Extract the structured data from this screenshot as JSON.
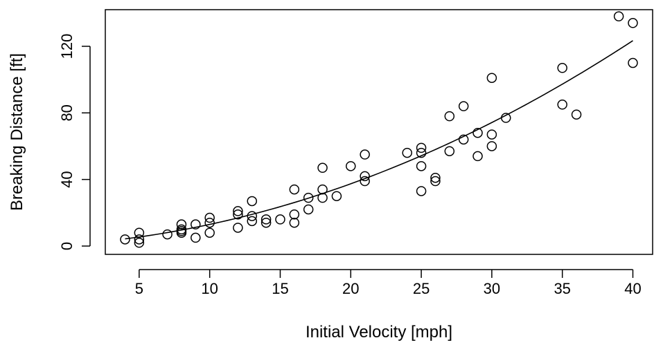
{
  "chart_data": {
    "type": "scatter",
    "xlabel": "Initial Velocity [mph]",
    "ylabel": "Breaking Distance [ft]",
    "xlim": [
      2.6,
      41.4
    ],
    "ylim": [
      -5.0,
      142.0
    ],
    "x_ticks": [
      5,
      10,
      15,
      20,
      25,
      30,
      35,
      40
    ],
    "y_ticks": [
      0,
      40,
      80,
      120
    ],
    "grid": false,
    "legend": "none",
    "points": [
      [
        4,
        4
      ],
      [
        5,
        2
      ],
      [
        5,
        4
      ],
      [
        5,
        8
      ],
      [
        7,
        7
      ],
      [
        8,
        8
      ],
      [
        8,
        9
      ],
      [
        8,
        10
      ],
      [
        8,
        13
      ],
      [
        9,
        5
      ],
      [
        9,
        13
      ],
      [
        10,
        8
      ],
      [
        10,
        14
      ],
      [
        10,
        17
      ],
      [
        12,
        11
      ],
      [
        12,
        19
      ],
      [
        12,
        21
      ],
      [
        13,
        15
      ],
      [
        13,
        18
      ],
      [
        13,
        27
      ],
      [
        14,
        14
      ],
      [
        14,
        16
      ],
      [
        15,
        16
      ],
      [
        16,
        14
      ],
      [
        16,
        19
      ],
      [
        16,
        34
      ],
      [
        17,
        22
      ],
      [
        17,
        29
      ],
      [
        18,
        29
      ],
      [
        18,
        34
      ],
      [
        18,
        47
      ],
      [
        19,
        30
      ],
      [
        20,
        48
      ],
      [
        21,
        39
      ],
      [
        21,
        42
      ],
      [
        21,
        55
      ],
      [
        24,
        56
      ],
      [
        25,
        33
      ],
      [
        25,
        48
      ],
      [
        25,
        56
      ],
      [
        25,
        59
      ],
      [
        26,
        39
      ],
      [
        26,
        41
      ],
      [
        27,
        57
      ],
      [
        27,
        78
      ],
      [
        28,
        64
      ],
      [
        28,
        84
      ],
      [
        29,
        54
      ],
      [
        29,
        68
      ],
      [
        30,
        60
      ],
      [
        30,
        67
      ],
      [
        30,
        101
      ],
      [
        31,
        77
      ],
      [
        35,
        85
      ],
      [
        35,
        107
      ],
      [
        36,
        79
      ],
      [
        39,
        138
      ],
      [
        40,
        110
      ],
      [
        40,
        134
      ]
    ],
    "fit_curve": {
      "type": "quadratic",
      "x_range": [
        4,
        40
      ],
      "coefficients": {
        "a": 0.062,
        "b": 0.58,
        "c": 1.0
      }
    }
  }
}
